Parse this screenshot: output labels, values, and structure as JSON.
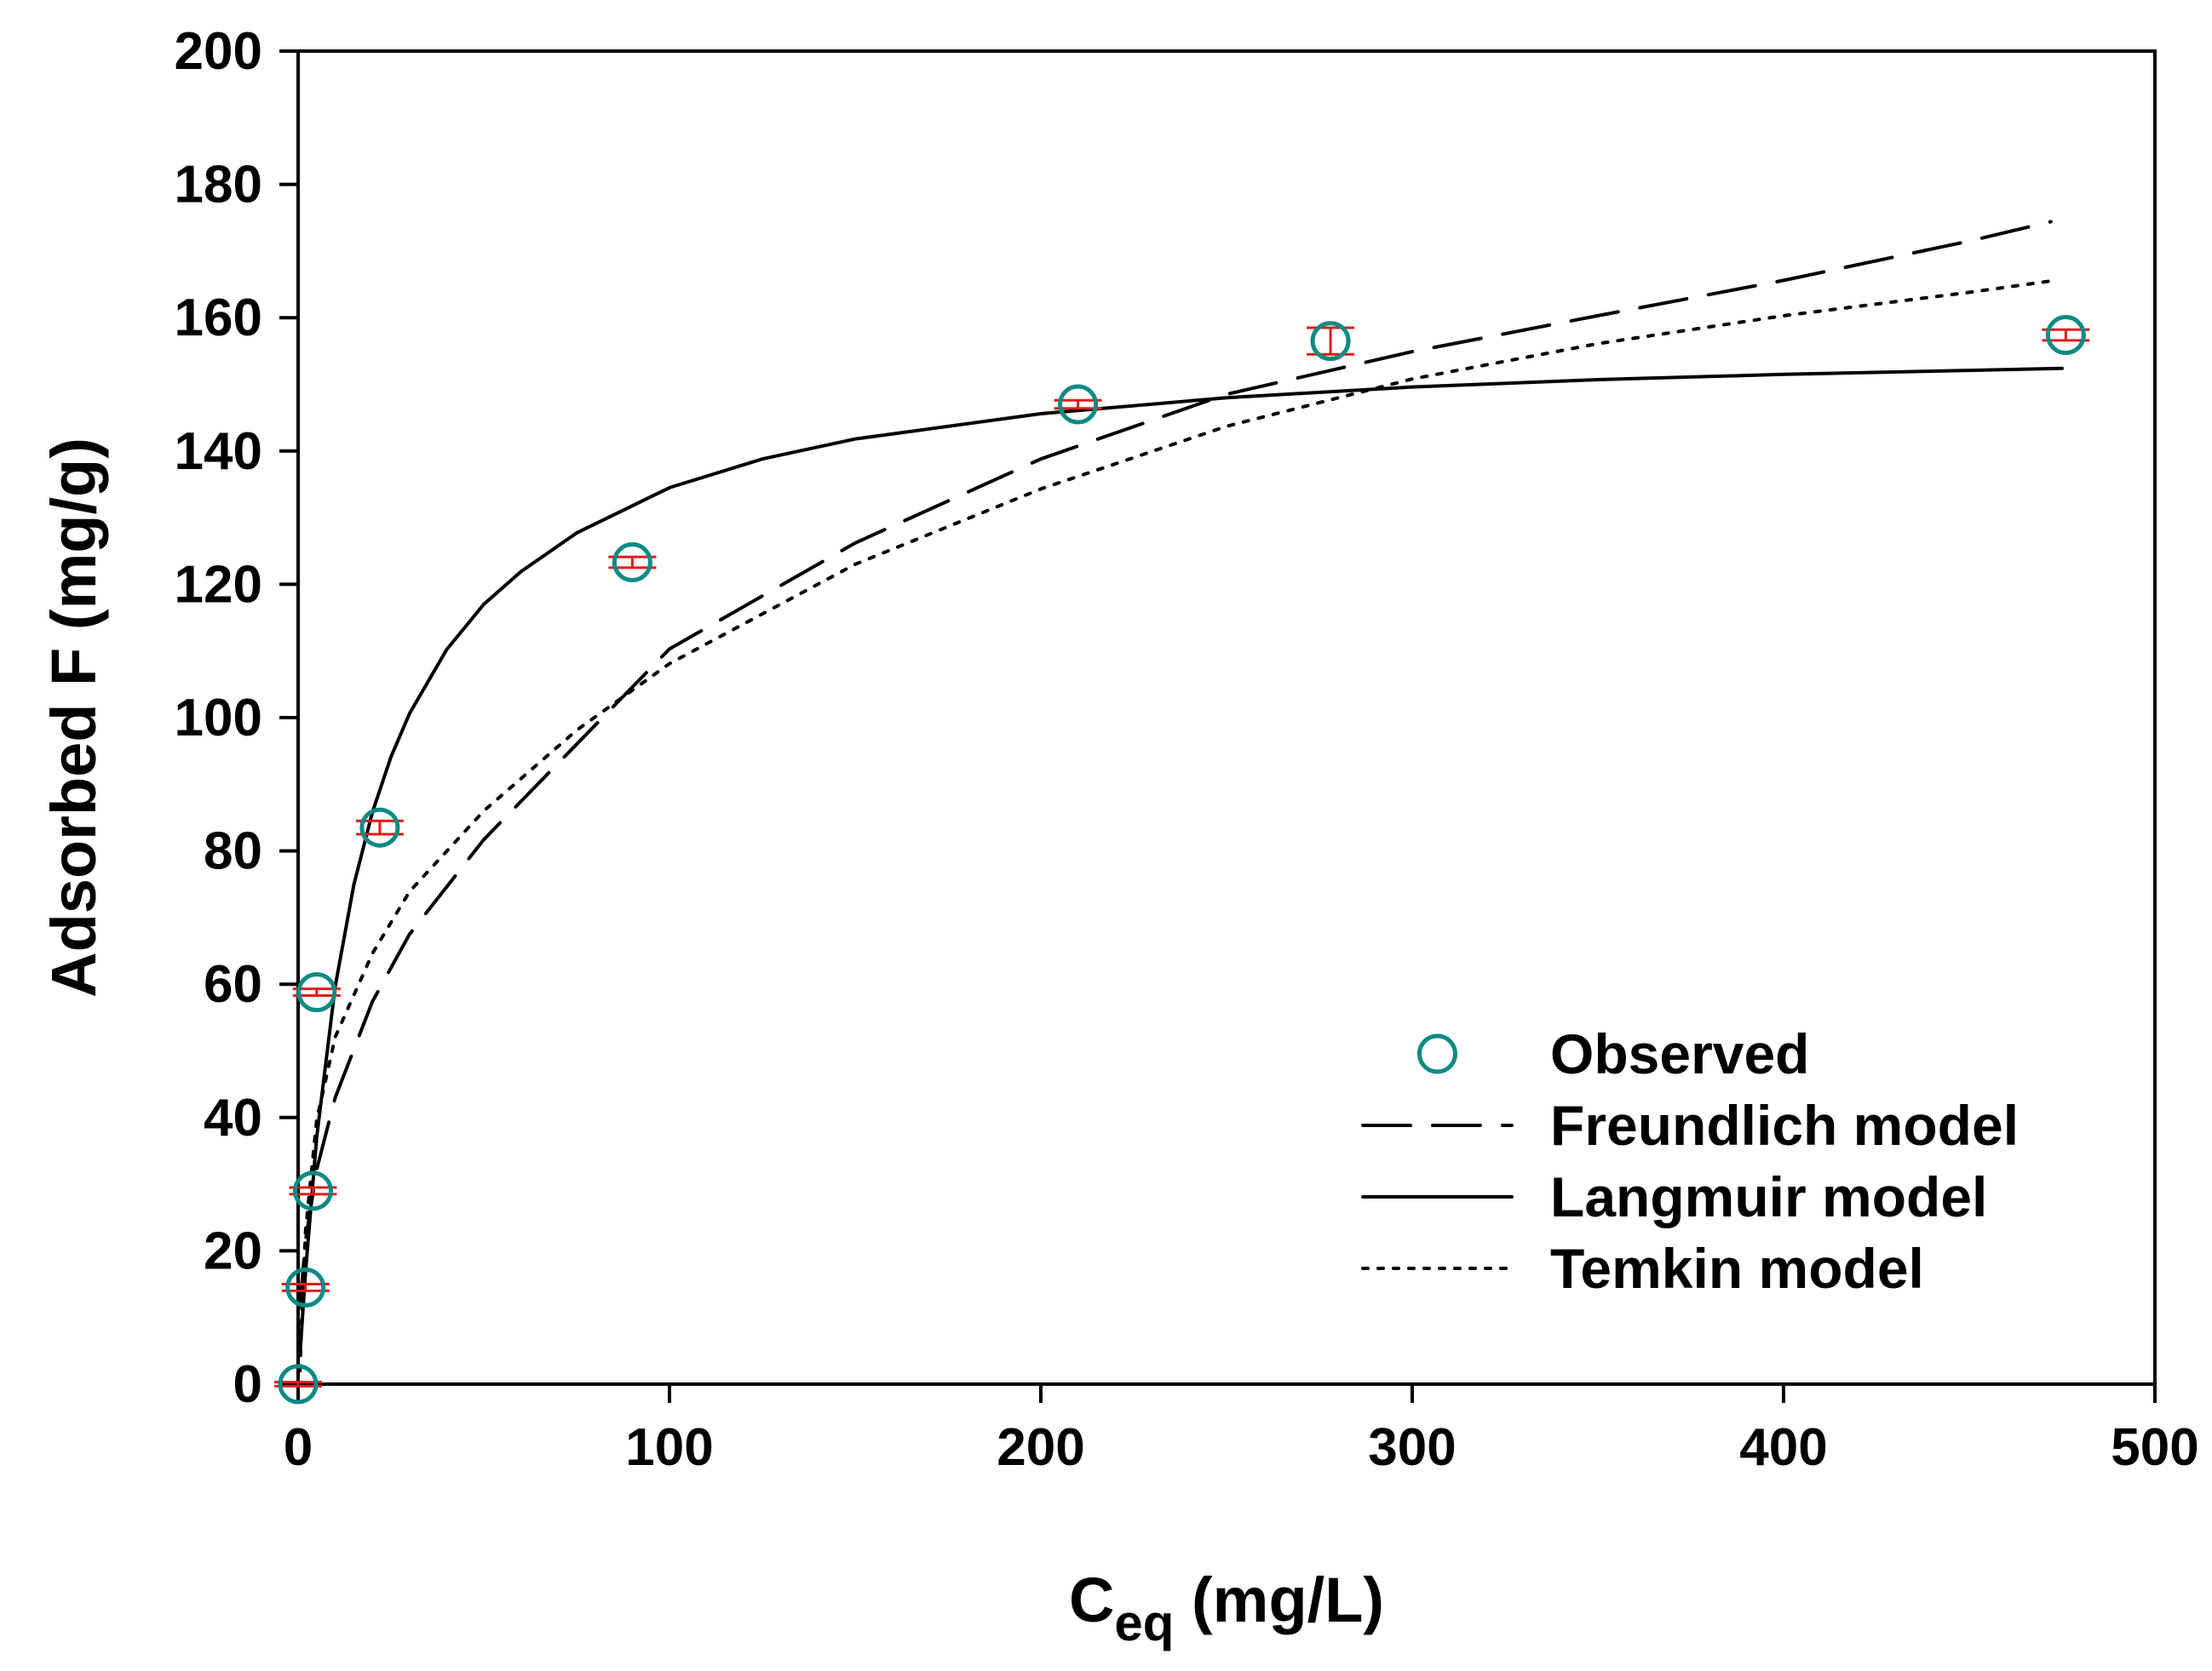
{
  "chart_data": {
    "type": "scatter",
    "title": "",
    "xlabel": "C",
    "xlabel_sub": "eq",
    "xlabel_units": " (mg/L)",
    "ylabel": "Adsorbed F (mg/g)",
    "xlim": [
      0,
      500
    ],
    "ylim": [
      0,
      200
    ],
    "xticks": [
      0,
      100,
      200,
      300,
      400,
      500
    ],
    "yticks": [
      0,
      20,
      40,
      60,
      80,
      100,
      120,
      140,
      160,
      180,
      200
    ],
    "grid": false,
    "legend_position": "bottom-right",
    "series": [
      {
        "name": "Observed",
        "kind": "points",
        "marker": "open-circle",
        "color": "#0e8a84",
        "error_color": "#e01b1b",
        "x": [
          0,
          2,
          4,
          5,
          22,
          90,
          210,
          278,
          476
        ],
        "y": [
          0,
          14.5,
          29,
          58.8,
          83.5,
          123.3,
          147,
          156.5,
          157.4
        ],
        "y_error": [
          0.3,
          0.5,
          0.5,
          0.5,
          1.0,
          0.8,
          0.6,
          2.0,
          0.8
        ]
      },
      {
        "name": "Freundlich model",
        "kind": "curve",
        "style": "dashed",
        "color": "#000000",
        "x": [
          0.5,
          2,
          5,
          10,
          20,
          30,
          50,
          75,
          100,
          150,
          200,
          250,
          300,
          350,
          400,
          450,
          472
        ],
        "y": [
          11.6,
          21.5,
          32.2,
          43.0,
          57.4,
          67.5,
          81.7,
          96.0,
          110.3,
          126.2,
          138.8,
          148.5,
          154.9,
          160.3,
          165.6,
          171.5,
          174.4
        ]
      },
      {
        "name": "Langmuir model",
        "kind": "curve",
        "style": "solid",
        "color": "#000000",
        "x": [
          0.5,
          2,
          5,
          10,
          15,
          20,
          25,
          30,
          40,
          50,
          60,
          75,
          100,
          125,
          150,
          200,
          250,
          300,
          350,
          400,
          450,
          475
        ],
        "y": [
          4.5,
          16.8,
          37.0,
          59.7,
          74.9,
          85.8,
          94.1,
          100.6,
          110.2,
          117.0,
          121.9,
          127.7,
          134.5,
          138.8,
          141.8,
          145.6,
          148.0,
          149.6,
          150.7,
          151.5,
          152.1,
          152.4
        ]
      },
      {
        "name": "Temkin model",
        "kind": "curve",
        "style": "dotted",
        "color": "#000000",
        "x": [
          0.5,
          1,
          2,
          5,
          10,
          20,
          30,
          50,
          75,
          100,
          150,
          200,
          250,
          300,
          350,
          400,
          450,
          472
        ],
        "y": [
          2.0,
          10.4,
          22.9,
          39.6,
          52.1,
          64.6,
          73.9,
          86.0,
          98.1,
          108.1,
          123.0,
          134.3,
          143.7,
          150.8,
          156.1,
          160.3,
          163.8,
          165.5
        ]
      }
    ]
  }
}
